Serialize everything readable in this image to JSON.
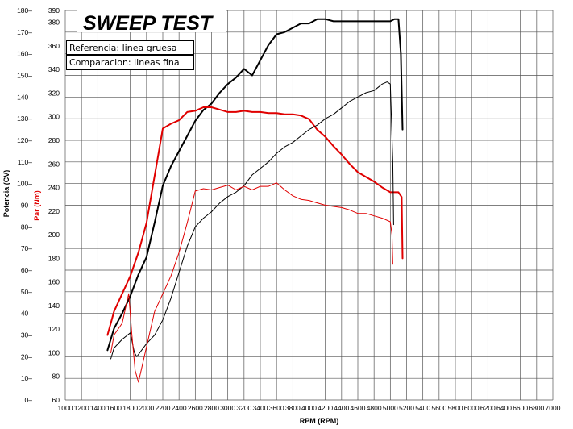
{
  "chart_data": {
    "type": "line",
    "title": "SWEEP TEST",
    "xlabel": "RPM (RPM)",
    "ylabel_left": "Potencia (CV)",
    "ylabel_right": "Par (Nm)",
    "xlim": [
      1000,
      7000
    ],
    "x_ticks": [
      1000,
      1200,
      1400,
      1600,
      1800,
      2000,
      2200,
      2400,
      2600,
      2800,
      3000,
      3200,
      3400,
      3600,
      3800,
      4000,
      4200,
      4400,
      4600,
      4800,
      5000,
      5200,
      5400,
      5600,
      5800,
      6000,
      6200,
      6400,
      6600,
      6800,
      7000
    ],
    "ylim_power": [
      0,
      180
    ],
    "power_ticks": [
      "180–",
      "170–",
      "160–",
      "150–",
      "140–",
      "130–",
      "120–",
      "110–",
      "100–",
      "90–",
      "80–",
      "70–",
      "60–",
      "50–",
      "40–",
      "30–",
      "20–",
      "10–",
      "0–"
    ],
    "ylim_torque": [
      60,
      390
    ],
    "torque_ticks": [
      60,
      80,
      100,
      120,
      140,
      160,
      180,
      200,
      220,
      240,
      260,
      280,
      300,
      320,
      340,
      360,
      380,
      390
    ],
    "legend": [
      "Referencia: linea gruesa",
      "Comparacion: lineas fina"
    ],
    "series": [
      {
        "name": "Potencia referencia",
        "axis": "power",
        "color": "#000000",
        "width": 2,
        "x": [
          1520,
          1600,
          1700,
          1800,
          1900,
          2000,
          2100,
          2200,
          2300,
          2400,
          2500,
          2600,
          2700,
          2800,
          2900,
          3000,
          3100,
          3200,
          3300,
          3400,
          3500,
          3600,
          3700,
          3800,
          3900,
          4000,
          4100,
          4200,
          4300,
          4400,
          4500,
          4600,
          4700,
          4800,
          4900,
          5000,
          5050,
          5100,
          5130,
          5150
        ],
        "y": [
          23,
          33,
          40,
          48,
          58,
          66,
          82,
          99,
          108,
          115,
          122,
          129,
          134,
          137,
          142,
          146,
          149,
          153,
          150,
          157,
          164,
          169,
          170,
          172,
          174,
          174,
          176,
          176,
          175,
          175,
          175,
          175,
          175,
          175,
          175,
          175,
          176,
          176,
          160,
          125
        ]
      },
      {
        "name": "Par referencia",
        "axis": "torque",
        "color": "#e00000",
        "width": 2,
        "x": [
          1520,
          1560,
          1600,
          1700,
          1800,
          1900,
          2000,
          2100,
          2150,
          2200,
          2300,
          2400,
          2500,
          2600,
          2700,
          2800,
          2900,
          3000,
          3100,
          3200,
          3300,
          3400,
          3500,
          3600,
          3700,
          3800,
          3900,
          4000,
          4100,
          4200,
          4300,
          4400,
          4500,
          4600,
          4700,
          4800,
          4900,
          5000,
          5100,
          5140,
          5150
        ],
        "y": [
          115,
          125,
          135,
          150,
          165,
          185,
          210,
          250,
          270,
          290,
          294,
          297,
          304,
          305,
          308,
          308,
          306,
          304,
          304,
          305,
          304,
          304,
          303,
          303,
          302,
          302,
          301,
          298,
          289,
          283,
          275,
          268,
          260,
          253,
          249,
          245,
          240,
          236,
          236,
          232,
          180
        ]
      },
      {
        "name": "Potencia comparacion",
        "axis": "power",
        "color": "#000000",
        "width": 1,
        "x": [
          1560,
          1600,
          1700,
          1800,
          1850,
          1880,
          1900,
          2000,
          2100,
          2200,
          2300,
          2400,
          2500,
          2600,
          2700,
          2800,
          2900,
          3000,
          3100,
          3200,
          3300,
          3400,
          3500,
          3600,
          3700,
          3800,
          3900,
          4000,
          4100,
          4200,
          4300,
          4400,
          4500,
          4600,
          4700,
          4800,
          4900,
          4960,
          5000,
          5030,
          5040
        ],
        "y": [
          19,
          24,
          28,
          31,
          22,
          20,
          21,
          26,
          30,
          37,
          47,
          59,
          71,
          80,
          84,
          87,
          91,
          94,
          96,
          99,
          104,
          107,
          110,
          114,
          117,
          119,
          122,
          125,
          127,
          130,
          132,
          135,
          138,
          140,
          142,
          143,
          146,
          147,
          146,
          110,
          81
        ]
      },
      {
        "name": "Par comparacion",
        "axis": "torque",
        "color": "#e00000",
        "width": 1,
        "x": [
          1560,
          1600,
          1700,
          1780,
          1820,
          1860,
          1900,
          1950,
          2000,
          2100,
          2200,
          2300,
          2400,
          2500,
          2600,
          2700,
          2800,
          2900,
          3000,
          3100,
          3200,
          3300,
          3400,
          3500,
          3600,
          3700,
          3800,
          3900,
          4000,
          4100,
          4200,
          4300,
          4400,
          4500,
          4600,
          4700,
          4800,
          4900,
          5000,
          5020,
          5030
        ],
        "y": [
          100,
          115,
          125,
          150,
          115,
          85,
          75,
          90,
          105,
          135,
          150,
          165,
          185,
          210,
          237,
          239,
          238,
          240,
          242,
          238,
          241,
          238,
          241,
          241,
          244,
          238,
          233,
          230,
          229,
          227,
          225,
          224,
          223,
          221,
          218,
          218,
          216,
          214,
          211,
          200,
          175
        ]
      }
    ]
  }
}
